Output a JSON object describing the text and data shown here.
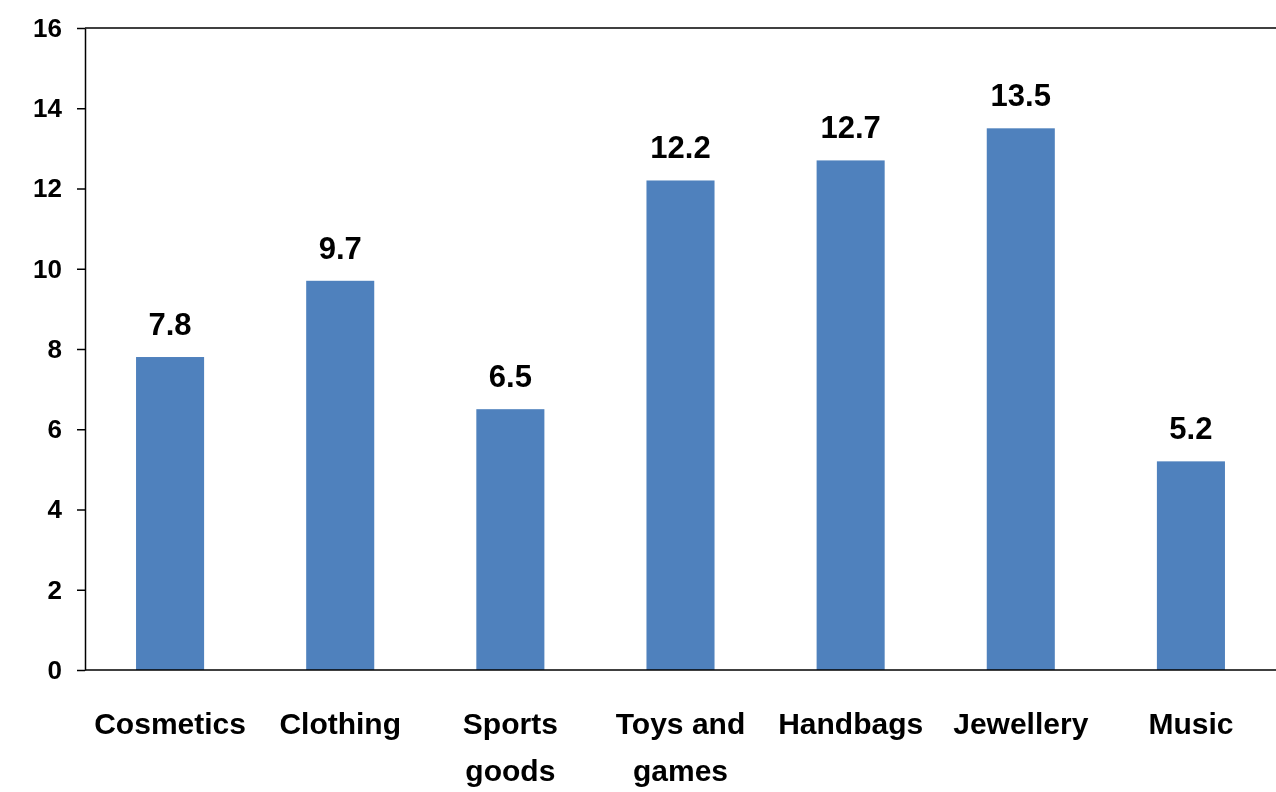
{
  "chart_data": {
    "type": "bar",
    "categories": [
      "Cosmetics",
      "Clothing",
      "Sports goods",
      "Toys and games",
      "Handbags",
      "Jewellery",
      "Music"
    ],
    "values": [
      7.8,
      9.7,
      6.5,
      12.2,
      12.7,
      13.5,
      5.2
    ],
    "color": "#4f81bd",
    "ylim": [
      0,
      16
    ],
    "yticks": [
      0,
      2,
      4,
      6,
      8,
      10,
      12,
      14,
      16
    ],
    "data_labels": true,
    "grid": false
  }
}
